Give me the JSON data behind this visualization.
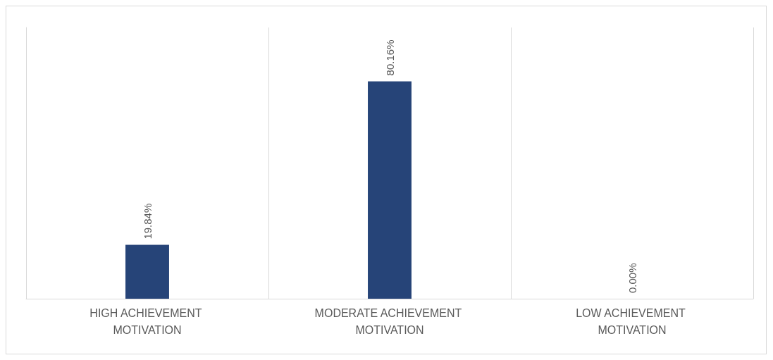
{
  "chart_data": {
    "type": "bar",
    "categories": [
      "HIGH ACHIEVEMENT MOTIVATION",
      "MODERATE ACHIEVEMENT MOTIVATION",
      "LOW ACHIEVEMENT MOTIVATION"
    ],
    "values": [
      19.84,
      80.16,
      0
    ],
    "value_labels": [
      "19.84%",
      "80.16%",
      "0.00%"
    ],
    "color": "#264478",
    "grid": "x"
  }
}
